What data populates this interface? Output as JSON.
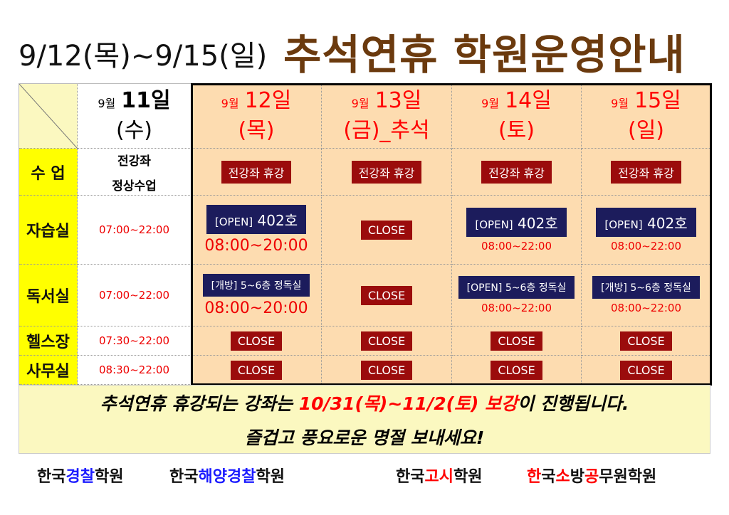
{
  "title": {
    "dates": "9/12(목)~9/15(일)",
    "main": "추석연휴 학원운영안내"
  },
  "header": [
    {
      "month": "9월",
      "day": "11일",
      "weekday": "(수)"
    },
    {
      "month": "9월",
      "day": "12일",
      "weekday": "(목)"
    },
    {
      "month": "9월",
      "day": "13일",
      "weekday": "(금)_추석"
    },
    {
      "month": "9월",
      "day": "14일",
      "weekday": "(토)"
    },
    {
      "month": "9월",
      "day": "15일",
      "weekday": "(일)"
    }
  ],
  "rows": {
    "class": {
      "label": "수 업",
      "normal": [
        "전강좌",
        "정상수업"
      ],
      "holiday": "전강좌 휴강"
    },
    "study": {
      "label": "자습실",
      "normal": "07:00~22:00",
      "d12": {
        "badge": "[OPEN]",
        "room": "402호",
        "time": "08:00~20:00"
      },
      "d13": "CLOSE",
      "d14": {
        "badge": "[OPEN]",
        "room": "402호",
        "time": "08:00~22:00"
      },
      "d15": {
        "badge": "[OPEN]",
        "room": "402호",
        "time": "08:00~22:00"
      }
    },
    "reading": {
      "label": "독서실",
      "normal": "07:00~22:00",
      "d12": {
        "badge": "[개방]",
        "room": "5~6층 정독실",
        "time": "08:00~20:00"
      },
      "d13": "CLOSE",
      "d14": {
        "badge": "[OPEN]",
        "room": "5~6층 정독실",
        "time": "08:00~22:00"
      },
      "d15": {
        "badge": "[개방]",
        "room": "5~6층 정독실",
        "time": "08:00~22:00"
      }
    },
    "gym": {
      "label": "헬스장",
      "normal": "07:30~22:00",
      "closed": "CLOSE"
    },
    "office": {
      "label": "사무실",
      "normal": "08:30~22:00",
      "closed": "CLOSE"
    }
  },
  "notice": {
    "line1_a": "추석연휴 휴강되는 강좌는 ",
    "line1_b": "10/31(목)~11/2(토) 보강",
    "line1_c": "이 진행됩니다.",
    "line2": "즐겁고 풍요로운 명절 보내세요!"
  },
  "academies": [
    {
      "a": "한국",
      "b": "경찰",
      "c": "학원"
    },
    {
      "a": "한국",
      "b": "해양경찰",
      "c": "학원"
    },
    {
      "a": "한국",
      "b": "고시",
      "c": "학원"
    },
    {
      "parts": [
        "한",
        "국",
        "소",
        "방",
        "공",
        "무원학원"
      ]
    }
  ],
  "colors": {
    "title": "#6b3a0e",
    "holiday_bg": "#fddcb0",
    "label_bg": "#ffff00",
    "closed": "#9b0c0c",
    "open": "#1c1c5c"
  }
}
